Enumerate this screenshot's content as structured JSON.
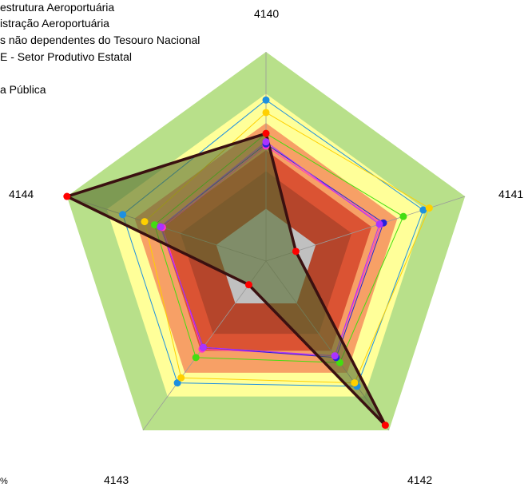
{
  "legend": {
    "lines": [
      "estrutura Aeroportuária",
      "istração Aeroportuária",
      "s não dependentes do Tesouro Nacional",
      "E - Setor Produtivo Estatal",
      "a Pública"
    ]
  },
  "footnote": "%",
  "chart_data": {
    "type": "radar",
    "axes": [
      "4140",
      "4141",
      "4142",
      "4143",
      "4144"
    ],
    "bands": [
      {
        "to": 0.25,
        "color": "#c0c0c0"
      },
      {
        "to": 0.43,
        "color": "#b5452b"
      },
      {
        "to": 0.53,
        "color": "#db5333"
      },
      {
        "to": 0.66,
        "color": "#f7a066"
      },
      {
        "to": 0.8,
        "color": "#ffff99"
      },
      {
        "to": 1.0,
        "color": "#b8e08a"
      }
    ],
    "series": [
      {
        "color": "#1e90e0",
        "values": [
          0.77,
          0.79,
          0.74,
          0.72,
          0.72
        ],
        "fill": "none"
      },
      {
        "color": "#ffd000",
        "values": [
          0.71,
          0.82,
          0.72,
          0.69,
          0.61
        ],
        "fill": "none"
      },
      {
        "color": "#44dd11",
        "values": [
          0.61,
          0.69,
          0.6,
          0.57,
          0.56
        ],
        "fill": "none"
      },
      {
        "color": "#ff33cc",
        "values": [
          0.55,
          0.58,
          0.56,
          0.52,
          0.52
        ],
        "fill": "none"
      },
      {
        "color": "#2222dd",
        "values": [
          0.56,
          0.59,
          0.57,
          0.51,
          0.53
        ],
        "fill": "none"
      },
      {
        "color": "#aa33ff",
        "values": [
          0.57,
          0.57,
          0.56,
          0.51,
          0.53
        ],
        "fill": "none"
      },
      {
        "color": "#ff0000",
        "values": [
          0.61,
          0.15,
          0.97,
          0.14,
          1.0
        ],
        "fill": "#556b2f",
        "stroke": "#3a1010"
      }
    ]
  }
}
